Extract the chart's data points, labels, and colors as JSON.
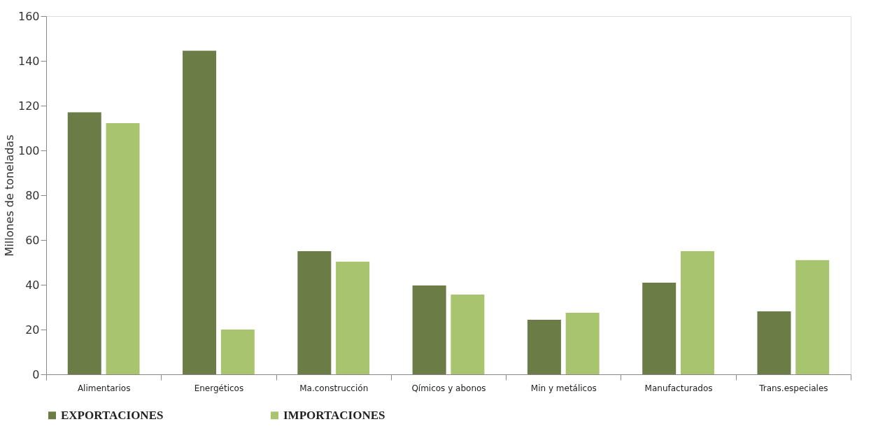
{
  "chart_data": {
    "type": "bar",
    "ylabel": "Millones de toneladas",
    "categories": [
      "Alimentarios",
      "Energéticos",
      "Ma.construcción",
      "Qímicos y abonos",
      "Min y metálicos",
      "Manufacturados",
      "Trans.especiales"
    ],
    "series": [
      {
        "name": "EXPORTACIONES",
        "color": "#6b7c47",
        "values": [
          117,
          144.5,
          55,
          39.7,
          24.4,
          40.9,
          28.1
        ]
      },
      {
        "name": "IMPORTACIONES",
        "color": "#a9c46f",
        "values": [
          112.2,
          20,
          50.3,
          35.6,
          27.5,
          55,
          51
        ]
      }
    ],
    "ylim": [
      0,
      160
    ],
    "yticks": [
      0,
      20,
      40,
      60,
      80,
      100,
      120,
      140,
      160
    ],
    "grid": false,
    "legend": "bottom"
  }
}
